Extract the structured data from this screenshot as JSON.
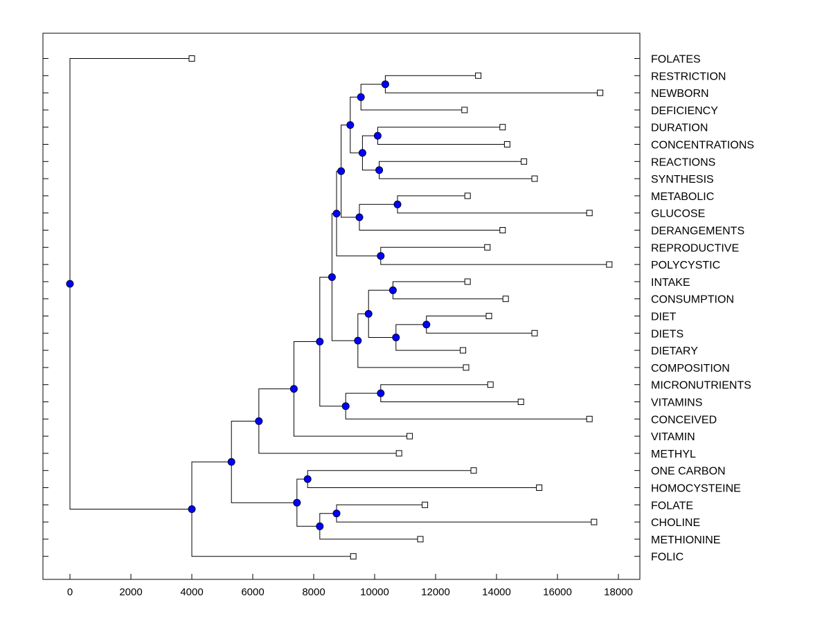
{
  "chart_data": {
    "type": "dendrogram",
    "title": "",
    "xlabel": "",
    "ylabel": "",
    "xlim": [
      -900,
      18500
    ],
    "x_ticks": [
      0,
      2000,
      4000,
      6000,
      8000,
      10000,
      12000,
      14000,
      16000,
      18000
    ],
    "x_tick_labels": [
      "0",
      "2000",
      "4000",
      "6000",
      "8000",
      "10000",
      "12000",
      "14000",
      "16000",
      "18000"
    ],
    "leaves": [
      {
        "name": "FOLATES",
        "label": "FOLATES",
        "x": 4000
      },
      {
        "name": "RESTRICTION",
        "label": "RESTRICTION",
        "x": 13400
      },
      {
        "name": "NEWBORN",
        "label": "NEWBORN",
        "x": 17400
      },
      {
        "name": "DEFICIENCY",
        "label": "DEFICIENCY",
        "x": 12950
      },
      {
        "name": "DURATION",
        "label": "DURATION",
        "x": 14200
      },
      {
        "name": "CONCENTRATIONS",
        "label": "CONCENTRATIONS",
        "x": 14350
      },
      {
        "name": "REACTIONS",
        "label": "REACTIONS",
        "x": 14900
      },
      {
        "name": "SYNTHESIS",
        "label": "SYNTHESIS",
        "x": 15250
      },
      {
        "name": "METABOLIC",
        "label": "METABOLIC",
        "x": 13050
      },
      {
        "name": "GLUCOSE",
        "label": "GLUCOSE",
        "x": 17050
      },
      {
        "name": "DERANGEMENTS",
        "label": "DERANGEMENTS",
        "x": 14200
      },
      {
        "name": "REPRODUCTIVE",
        "label": "REPRODUCTIVE",
        "x": 13700
      },
      {
        "name": "POLYCYSTIC",
        "label": "POLYCYSTIC",
        "x": 17700
      },
      {
        "name": "INTAKE",
        "label": "INTAKE",
        "x": 13050
      },
      {
        "name": "CONSUMPTION",
        "label": "CONSUMPTION",
        "x": 14300
      },
      {
        "name": "DIET",
        "label": "DIET",
        "x": 13750
      },
      {
        "name": "DIETS",
        "label": "DIETS",
        "x": 15250
      },
      {
        "name": "DIETARY",
        "label": "DIETARY",
        "x": 12900
      },
      {
        "name": "COMPOSITION",
        "label": "COMPOSITION",
        "x": 13000
      },
      {
        "name": "MICRONUTRIENTS",
        "label": "MICRONUTRIENTS",
        "x": 13800
      },
      {
        "name": "VITAMINS",
        "label": "VITAMINS",
        "x": 14800
      },
      {
        "name": "CONCEIVED",
        "label": "CONCEIVED",
        "x": 17050
      },
      {
        "name": "VITAMIN",
        "label": "VITAMIN",
        "x": 11150
      },
      {
        "name": "METHYL",
        "label": "METHYL",
        "x": 10800
      },
      {
        "name": "ONE CARBON",
        "label": "ONE CARBON",
        "x": 13250
      },
      {
        "name": "HOMOCYSTEINE",
        "label": "HOMOCYSTEINE",
        "x": 15400
      },
      {
        "name": "FOLATE",
        "label": "FOLATE",
        "x": 11650
      },
      {
        "name": "CHOLINE",
        "label": "CHOLINE",
        "x": 17200
      },
      {
        "name": "METHIONINE",
        "label": "METHIONINE",
        "x": 11500
      },
      {
        "name": "FOLIC",
        "label": "FOLIC",
        "x": 9300
      }
    ],
    "nodes": [
      {
        "id": "N1",
        "x": 10350,
        "children": [
          "RESTRICTION",
          "NEWBORN"
        ]
      },
      {
        "id": "N2",
        "x": 9550,
        "children": [
          "N1",
          "DEFICIENCY"
        ]
      },
      {
        "id": "N3",
        "x": 10100,
        "children": [
          "DURATION",
          "CONCENTRATIONS"
        ]
      },
      {
        "id": "N4",
        "x": 10150,
        "children": [
          "REACTIONS",
          "SYNTHESIS"
        ]
      },
      {
        "id": "N5",
        "x": 9600,
        "children": [
          "N3",
          "N4"
        ]
      },
      {
        "id": "N6",
        "x": 9200,
        "children": [
          "N2",
          "N5"
        ]
      },
      {
        "id": "N7",
        "x": 10750,
        "children": [
          "METABOLIC",
          "GLUCOSE"
        ]
      },
      {
        "id": "N8",
        "x": 9500,
        "children": [
          "N7",
          "DERANGEMENTS"
        ]
      },
      {
        "id": "N9",
        "x": 8900,
        "children": [
          "N6",
          "N8"
        ]
      },
      {
        "id": "N10",
        "x": 10200,
        "children": [
          "REPRODUCTIVE",
          "POLYCYSTIC"
        ]
      },
      {
        "id": "N11",
        "x": 8750,
        "children": [
          "N9",
          "N10"
        ]
      },
      {
        "id": "N12",
        "x": 10600,
        "children": [
          "INTAKE",
          "CONSUMPTION"
        ]
      },
      {
        "id": "N13",
        "x": 11700,
        "children": [
          "DIET",
          "DIETS"
        ]
      },
      {
        "id": "N14",
        "x": 10700,
        "children": [
          "N13",
          "DIETARY"
        ]
      },
      {
        "id": "N15",
        "x": 9800,
        "children": [
          "N12",
          "N14"
        ]
      },
      {
        "id": "N16",
        "x": 9450,
        "children": [
          "N15",
          "COMPOSITION"
        ]
      },
      {
        "id": "N17",
        "x": 8600,
        "children": [
          "N11",
          "N16"
        ]
      },
      {
        "id": "N18",
        "x": 10200,
        "children": [
          "MICRONUTRIENTS",
          "VITAMINS"
        ]
      },
      {
        "id": "N19",
        "x": 9050,
        "children": [
          "N18",
          "CONCEIVED"
        ]
      },
      {
        "id": "N20",
        "x": 8200,
        "children": [
          "N17",
          "N19"
        ]
      },
      {
        "id": "N21",
        "x": 7350,
        "children": [
          "N20",
          "VITAMIN"
        ]
      },
      {
        "id": "N22",
        "x": 6200,
        "children": [
          "N21",
          "METHYL"
        ]
      },
      {
        "id": "N23",
        "x": 7800,
        "children": [
          "ONE CARBON",
          "HOMOCYSTEINE"
        ]
      },
      {
        "id": "N24",
        "x": 8750,
        "children": [
          "FOLATE",
          "CHOLINE"
        ]
      },
      {
        "id": "N25",
        "x": 8200,
        "children": [
          "N24",
          "METHIONINE"
        ]
      },
      {
        "id": "N26",
        "x": 7450,
        "children": [
          "N23",
          "N25"
        ]
      },
      {
        "id": "N27",
        "x": 5300,
        "children": [
          "N22",
          "N26"
        ]
      },
      {
        "id": "N28",
        "x": 4000,
        "children": [
          "N27",
          "FOLIC"
        ]
      },
      {
        "id": "ROOT",
        "x": 0,
        "children": [
          "FOLATES",
          "N28"
        ]
      }
    ]
  }
}
